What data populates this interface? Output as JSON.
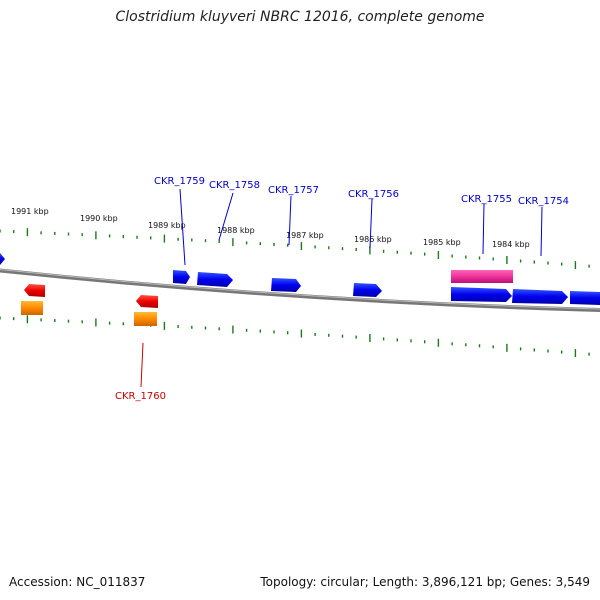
{
  "title": "Clostridium kluyveri NBRC 12016, complete genome",
  "footer": {
    "accession": "Accession: NC_011837",
    "summary": "Topology: circular; Length: 3,896,121 bp; Genes: 3,549"
  },
  "scale_labels": [
    {
      "name": "kbp-1991",
      "text": "1991 kbp"
    },
    {
      "name": "kbp-1990",
      "text": "1990 kbp"
    },
    {
      "name": "kbp-1989",
      "text": "1989 kbp"
    },
    {
      "name": "kbp-1988",
      "text": "1988 kbp"
    },
    {
      "name": "kbp-1987",
      "text": "1987 kbp"
    },
    {
      "name": "kbp-1986",
      "text": "1986 kbp"
    },
    {
      "name": "kbp-1985",
      "text": "1985 kbp"
    },
    {
      "name": "kbp-1984",
      "text": "1984 kbp"
    }
  ],
  "gene_labels": [
    {
      "name": "CKR_1759",
      "text": "CKR_1759",
      "color": "#0000cc"
    },
    {
      "name": "CKR_1758",
      "text": "CKR_1758",
      "color": "#0000cc"
    },
    {
      "name": "CKR_1757",
      "text": "CKR_1757",
      "color": "#0000cc"
    },
    {
      "name": "CKR_1756",
      "text": "CKR_1756",
      "color": "#0000cc"
    },
    {
      "name": "CKR_1755",
      "text": "CKR_1755",
      "color": "#0000cc"
    },
    {
      "name": "CKR_1754",
      "text": "CKR_1754",
      "color": "#0000cc"
    },
    {
      "name": "CKR_1760",
      "text": "CKR_1760",
      "color": "#cc0000"
    }
  ],
  "colors": {
    "forward_gene": "#0000ee",
    "reverse_gene": "#ee0000",
    "rna_gene": "#ff8800",
    "pseudo_gene": "#ee3399",
    "tick": "#1a7a1a",
    "backbone": "#888888"
  }
}
